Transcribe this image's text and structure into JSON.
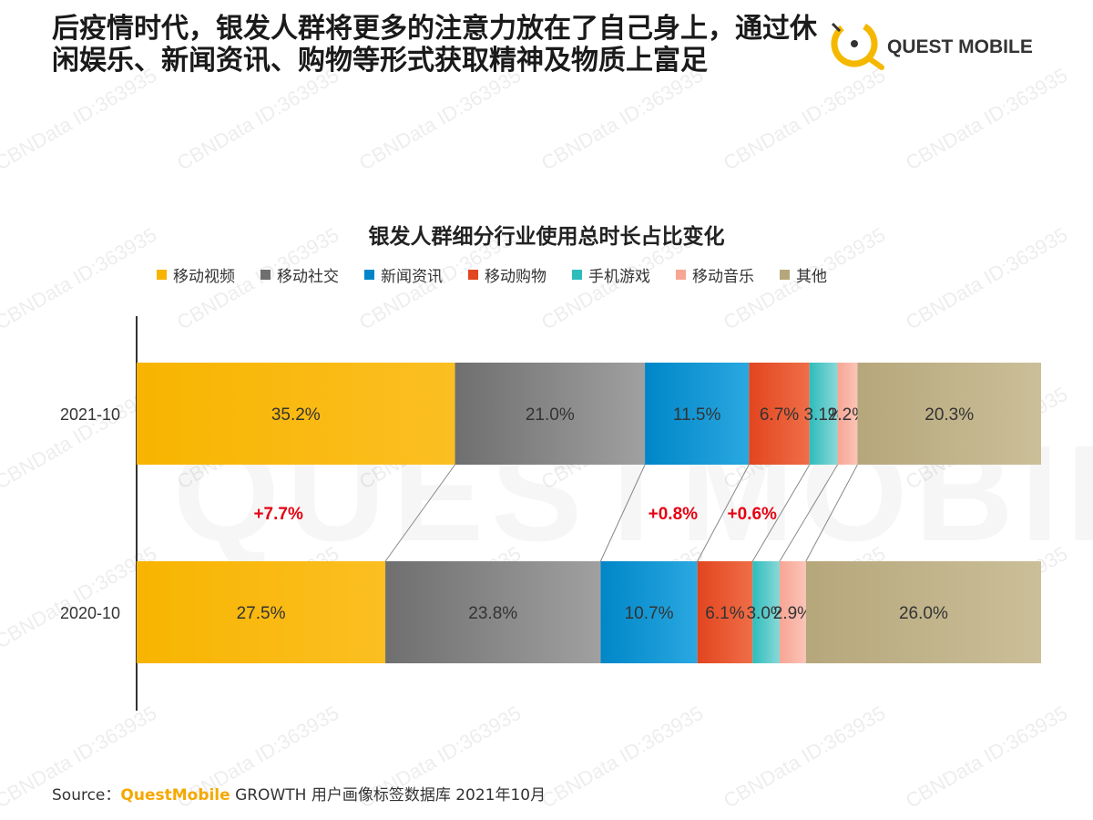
{
  "headline": "后疫情时代，银发人群将更多的注意力放在了自己身上，通过休闲娱乐、新闻资讯、购物等形式获取精神及物质上富足",
  "logo": {
    "text": "QUEST MOBILE",
    "mark_color": "#f5b800"
  },
  "watermark": {
    "text": "CBNData ID:363935",
    "background_text": "QUESTMOBILE"
  },
  "chart_data": {
    "type": "bar",
    "orientation": "horizontal",
    "stacked": "percent",
    "title": "银发人群细分行业使用总时长占比变化",
    "categories": [
      "2021-10",
      "2020-10"
    ],
    "series": [
      {
        "name": "移动视频",
        "values": [
          35.2,
          27.5
        ],
        "labels": [
          "35.2%",
          "27.5%"
        ],
        "color": "#f8b400",
        "color2": "#fbbf22"
      },
      {
        "name": "移动社交",
        "values": [
          21.0,
          23.8
        ],
        "labels": [
          "21.0%",
          "23.8%"
        ],
        "color": "#6f6f6f",
        "color2": "#a0a0a0"
      },
      {
        "name": "新闻资讯",
        "values": [
          11.5,
          10.7
        ],
        "labels": [
          "11.5%",
          "10.7%"
        ],
        "color": "#0086c8",
        "color2": "#2aa8e0"
      },
      {
        "name": "移动购物",
        "values": [
          6.7,
          6.1
        ],
        "labels": [
          "6.7%",
          "6.1%"
        ],
        "color": "#e2451f",
        "color2": "#ef6e48"
      },
      {
        "name": "手机游戏",
        "values": [
          3.1,
          3.0
        ],
        "labels": [
          "3.1%",
          "3.0%"
        ],
        "color": "#2fbcbc",
        "color2": "#8ad8d8"
      },
      {
        "name": "移动音乐",
        "values": [
          2.2,
          2.9
        ],
        "labels": [
          "2.2%",
          "2.9%"
        ],
        "color": "#f7a594",
        "color2": "#fbc4b8"
      },
      {
        "name": "其他",
        "values": [
          20.3,
          26.0
        ],
        "labels": [
          "20.3%",
          "26.0%"
        ],
        "color": "#b6a77b",
        "color2": "#cbbf99"
      }
    ],
    "changes": [
      {
        "series": "移动视频",
        "label": "+7.7%"
      },
      {
        "series": "新闻资讯",
        "label": "+0.8%"
      },
      {
        "series": "移动购物",
        "label": "+0.6%"
      }
    ],
    "legend_position": "top",
    "grid": false,
    "label_color": "#333333",
    "change_color": "#e60012"
  },
  "source": {
    "prefix": "Source：",
    "brand": "QuestMobile",
    "suffix": " GROWTH 用户画像标签数据库 2021年10月"
  }
}
